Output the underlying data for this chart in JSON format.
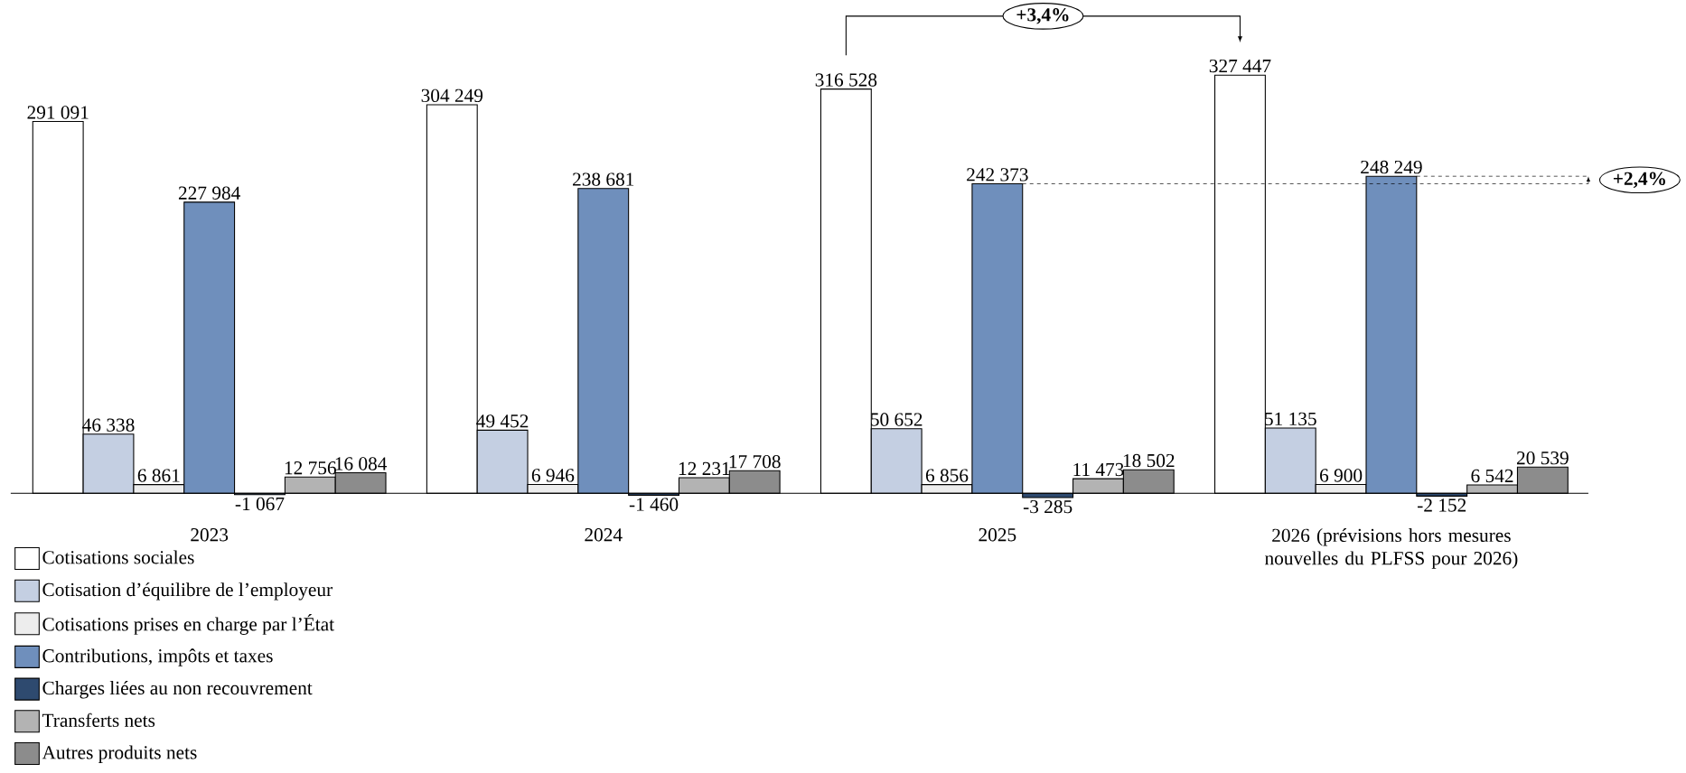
{
  "chart_data": {
    "type": "bar",
    "categories": [
      "2023",
      "2024",
      "2025",
      "2026 (prévisions hors mesures nouvelles du PLFSS pour 2026)"
    ],
    "series": [
      {
        "name": "Cotisations sociales",
        "color": "#ffffff",
        "values": [
          291091,
          304249,
          316528,
          327447
        ],
        "value_labels": [
          "291 091",
          "304 249",
          "316 528",
          "327 447"
        ]
      },
      {
        "name": "Cotisation d’équilibre de l’employeur",
        "color": "#c4cfe2",
        "values": [
          46338,
          49452,
          50652,
          51135
        ],
        "value_labels": [
          "46 338",
          "49 452",
          "50 652",
          "51 135"
        ]
      },
      {
        "name": "Cotisations prises en charge par l’État",
        "color": "#ededed",
        "values": [
          6861,
          6946,
          6856,
          6900
        ],
        "value_labels": [
          "6 861",
          "6 946",
          "6 856",
          "6 900"
        ]
      },
      {
        "name": "Contributions, impôts et taxes",
        "color": "#6f8fbc",
        "values": [
          227984,
          238681,
          242373,
          248249
        ],
        "value_labels": [
          "227 984",
          "238 681",
          "242 373",
          "248 249"
        ]
      },
      {
        "name": "Charges liées au non recouvrement",
        "color": "#2e4a6f",
        "values": [
          -1067,
          -1460,
          -3285,
          -2152
        ],
        "value_labels": [
          "-1 067",
          "-1 460",
          "-3 285",
          "-2 152"
        ]
      },
      {
        "name": "Transferts nets",
        "color": "#b3b3b3",
        "values": [
          12756,
          12231,
          11473,
          6542
        ],
        "value_labels": [
          "12 756",
          "12 231",
          "11 473",
          "6 542"
        ]
      },
      {
        "name": "Autres produits nets",
        "color": "#8c8c8c",
        "values": [
          16084,
          17708,
          18502,
          20539
        ],
        "value_labels": [
          "16 084",
          "17 708",
          "18 502",
          "20 539"
        ]
      }
    ],
    "annotations": [
      "+3,4%",
      "+2,4%"
    ],
    "legend": "bottom left"
  }
}
